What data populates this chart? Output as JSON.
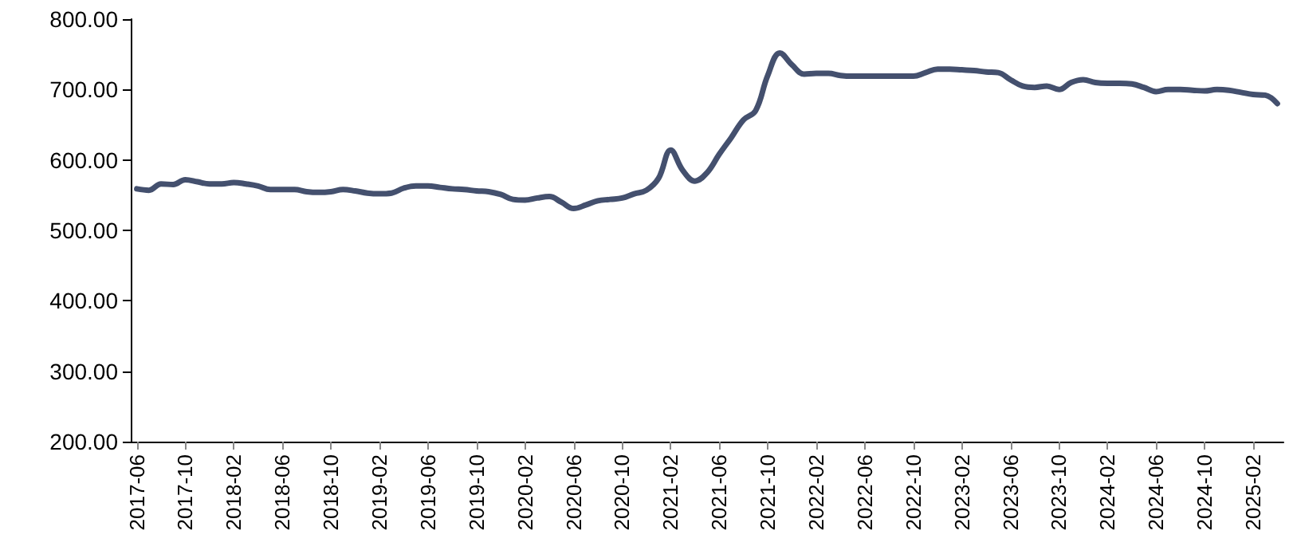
{
  "chart_data": {
    "type": "line",
    "categories": [
      "2017-06",
      null,
      null,
      null,
      "2017-10",
      null,
      null,
      null,
      "2018-02",
      null,
      null,
      null,
      "2018-06",
      null,
      null,
      null,
      "2018-10",
      null,
      null,
      null,
      "2019-02",
      null,
      null,
      null,
      "2019-06",
      null,
      null,
      null,
      "2019-10",
      null,
      null,
      null,
      "2020-02",
      null,
      null,
      null,
      "2020-06",
      null,
      null,
      null,
      "2020-10",
      null,
      null,
      null,
      "2021-02",
      null,
      null,
      null,
      "2021-06",
      null,
      null,
      null,
      "2021-10",
      null,
      null,
      null,
      "2022-02",
      null,
      null,
      null,
      "2022-06",
      null,
      null,
      null,
      "2022-10",
      null,
      null,
      null,
      "2023-02",
      null,
      null,
      null,
      "2023-06",
      null,
      null,
      null,
      "2023-10",
      null,
      null,
      null,
      "2024-02",
      null,
      null,
      null,
      "2024-06",
      null,
      null,
      null,
      "2024-10",
      null,
      null,
      null,
      "2025-02",
      null,
      null
    ],
    "series": [
      {
        "color": "#44506e",
        "values": [
          559,
          557,
          566,
          565,
          572,
          569,
          566,
          566,
          568,
          566,
          563,
          558,
          558,
          558,
          555,
          554,
          555,
          558,
          556,
          553,
          552,
          553,
          560,
          563,
          563,
          561,
          559,
          558,
          556,
          555,
          551,
          544,
          543,
          546,
          548,
          540,
          531,
          536,
          542,
          544,
          546,
          552,
          557,
          574,
          614,
          585,
          570,
          582,
          608,
          632,
          657,
          670,
          720,
          752,
          735,
          722,
          723,
          723,
          720,
          719,
          719,
          719,
          719,
          719,
          719,
          724,
          729,
          729,
          728,
          727,
          725,
          724,
          714,
          705,
          703,
          705,
          700,
          710,
          714,
          710,
          709,
          709,
          708,
          703,
          697,
          700,
          700,
          699,
          698,
          700,
          699,
          696,
          693,
          692,
          680
        ]
      }
    ],
    "ylim": [
      200,
      800
    ],
    "yticks": [
      {
        "value": 200,
        "label": "200.00"
      },
      {
        "value": 300,
        "label": "300.00"
      },
      {
        "value": 400,
        "label": "400.00"
      },
      {
        "value": 500,
        "label": "500.00"
      },
      {
        "value": 600,
        "label": "600.00"
      },
      {
        "value": 700,
        "label": "700.00"
      },
      {
        "value": 800,
        "label": "800.00"
      }
    ],
    "grid": false,
    "marker": "none",
    "line_style": "solid"
  }
}
